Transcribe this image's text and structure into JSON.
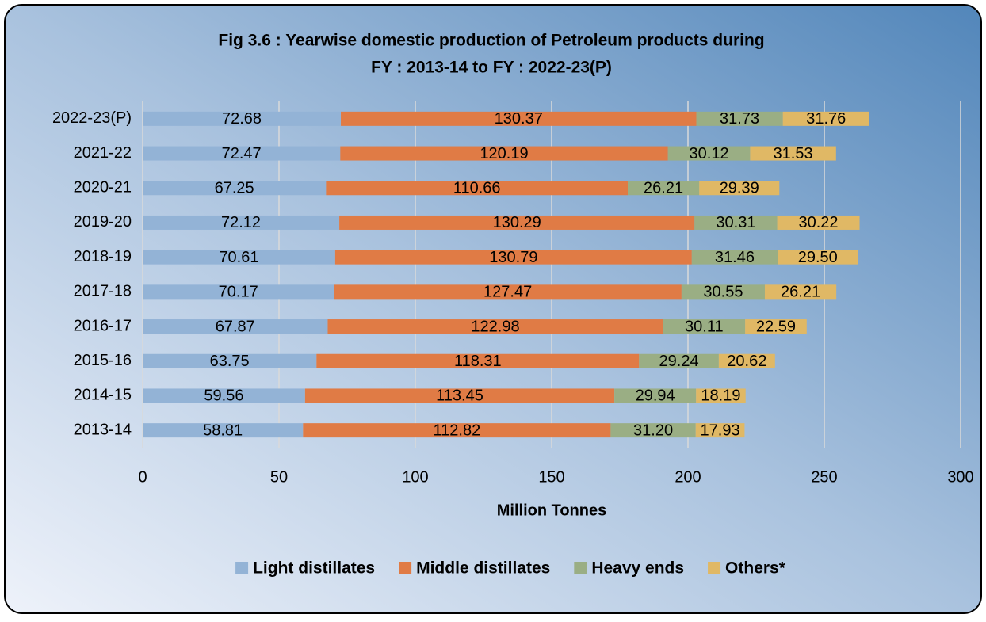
{
  "chart_data": {
    "type": "bar",
    "orientation": "horizontal",
    "stacked": true,
    "title": [
      "Fig 3.6 : Yearwise domestic production of Petroleum products during",
      "FY : 2013-14 to FY : 2022-23(P)"
    ],
    "xlabel": "Million Tonnes",
    "categories": [
      "2022-23(P)",
      "2021-22",
      "2020-21",
      "2019-20",
      "2018-19",
      "2017-18",
      "2016-17",
      "2015-16",
      "2014-15",
      "2013-14"
    ],
    "series": [
      {
        "name": "Light distillates",
        "color": "#93b3d6",
        "values": [
          72.68,
          72.47,
          67.25,
          72.12,
          70.61,
          70.17,
          67.87,
          63.75,
          59.56,
          58.81
        ],
        "value_labels": [
          "72.68",
          "72.47",
          "67.25",
          "72.12",
          "70.61",
          "70.17",
          "67.87",
          "63.75",
          "59.56",
          "58.81"
        ]
      },
      {
        "name": "Middle distillates",
        "color": "#e07b45",
        "values": [
          130.37,
          120.19,
          110.66,
          130.29,
          130.79,
          127.47,
          122.98,
          118.31,
          113.45,
          112.82
        ],
        "value_labels": [
          "130.37",
          "120.19",
          "110.66",
          "130.29",
          "130.79",
          "127.47",
          "122.98",
          "118.31",
          "113.45",
          "112.82"
        ]
      },
      {
        "name": "Heavy ends",
        "color": "#9aae84",
        "values": [
          31.73,
          30.12,
          26.21,
          30.31,
          31.46,
          30.55,
          30.11,
          29.24,
          29.94,
          31.2
        ],
        "value_labels": [
          "31.73",
          "30.12",
          "26.21",
          "30.31",
          "31.46",
          "30.55",
          "30.11",
          "29.24",
          "29.94",
          "31.20"
        ]
      },
      {
        "name": "Others*",
        "color": "#e0b865",
        "values": [
          31.76,
          31.53,
          29.39,
          30.22,
          29.5,
          26.21,
          22.59,
          20.62,
          18.19,
          17.93
        ],
        "value_labels": [
          "31.76",
          "31.53",
          "29.39",
          "30.22",
          "29.50",
          "26.21",
          "22.59",
          "20.62",
          "18.19",
          "17.93"
        ]
      }
    ],
    "xlim": [
      0,
      300
    ],
    "xticks": [
      0,
      50,
      100,
      150,
      200,
      250,
      300
    ],
    "grid": true,
    "legend": "bottom"
  }
}
